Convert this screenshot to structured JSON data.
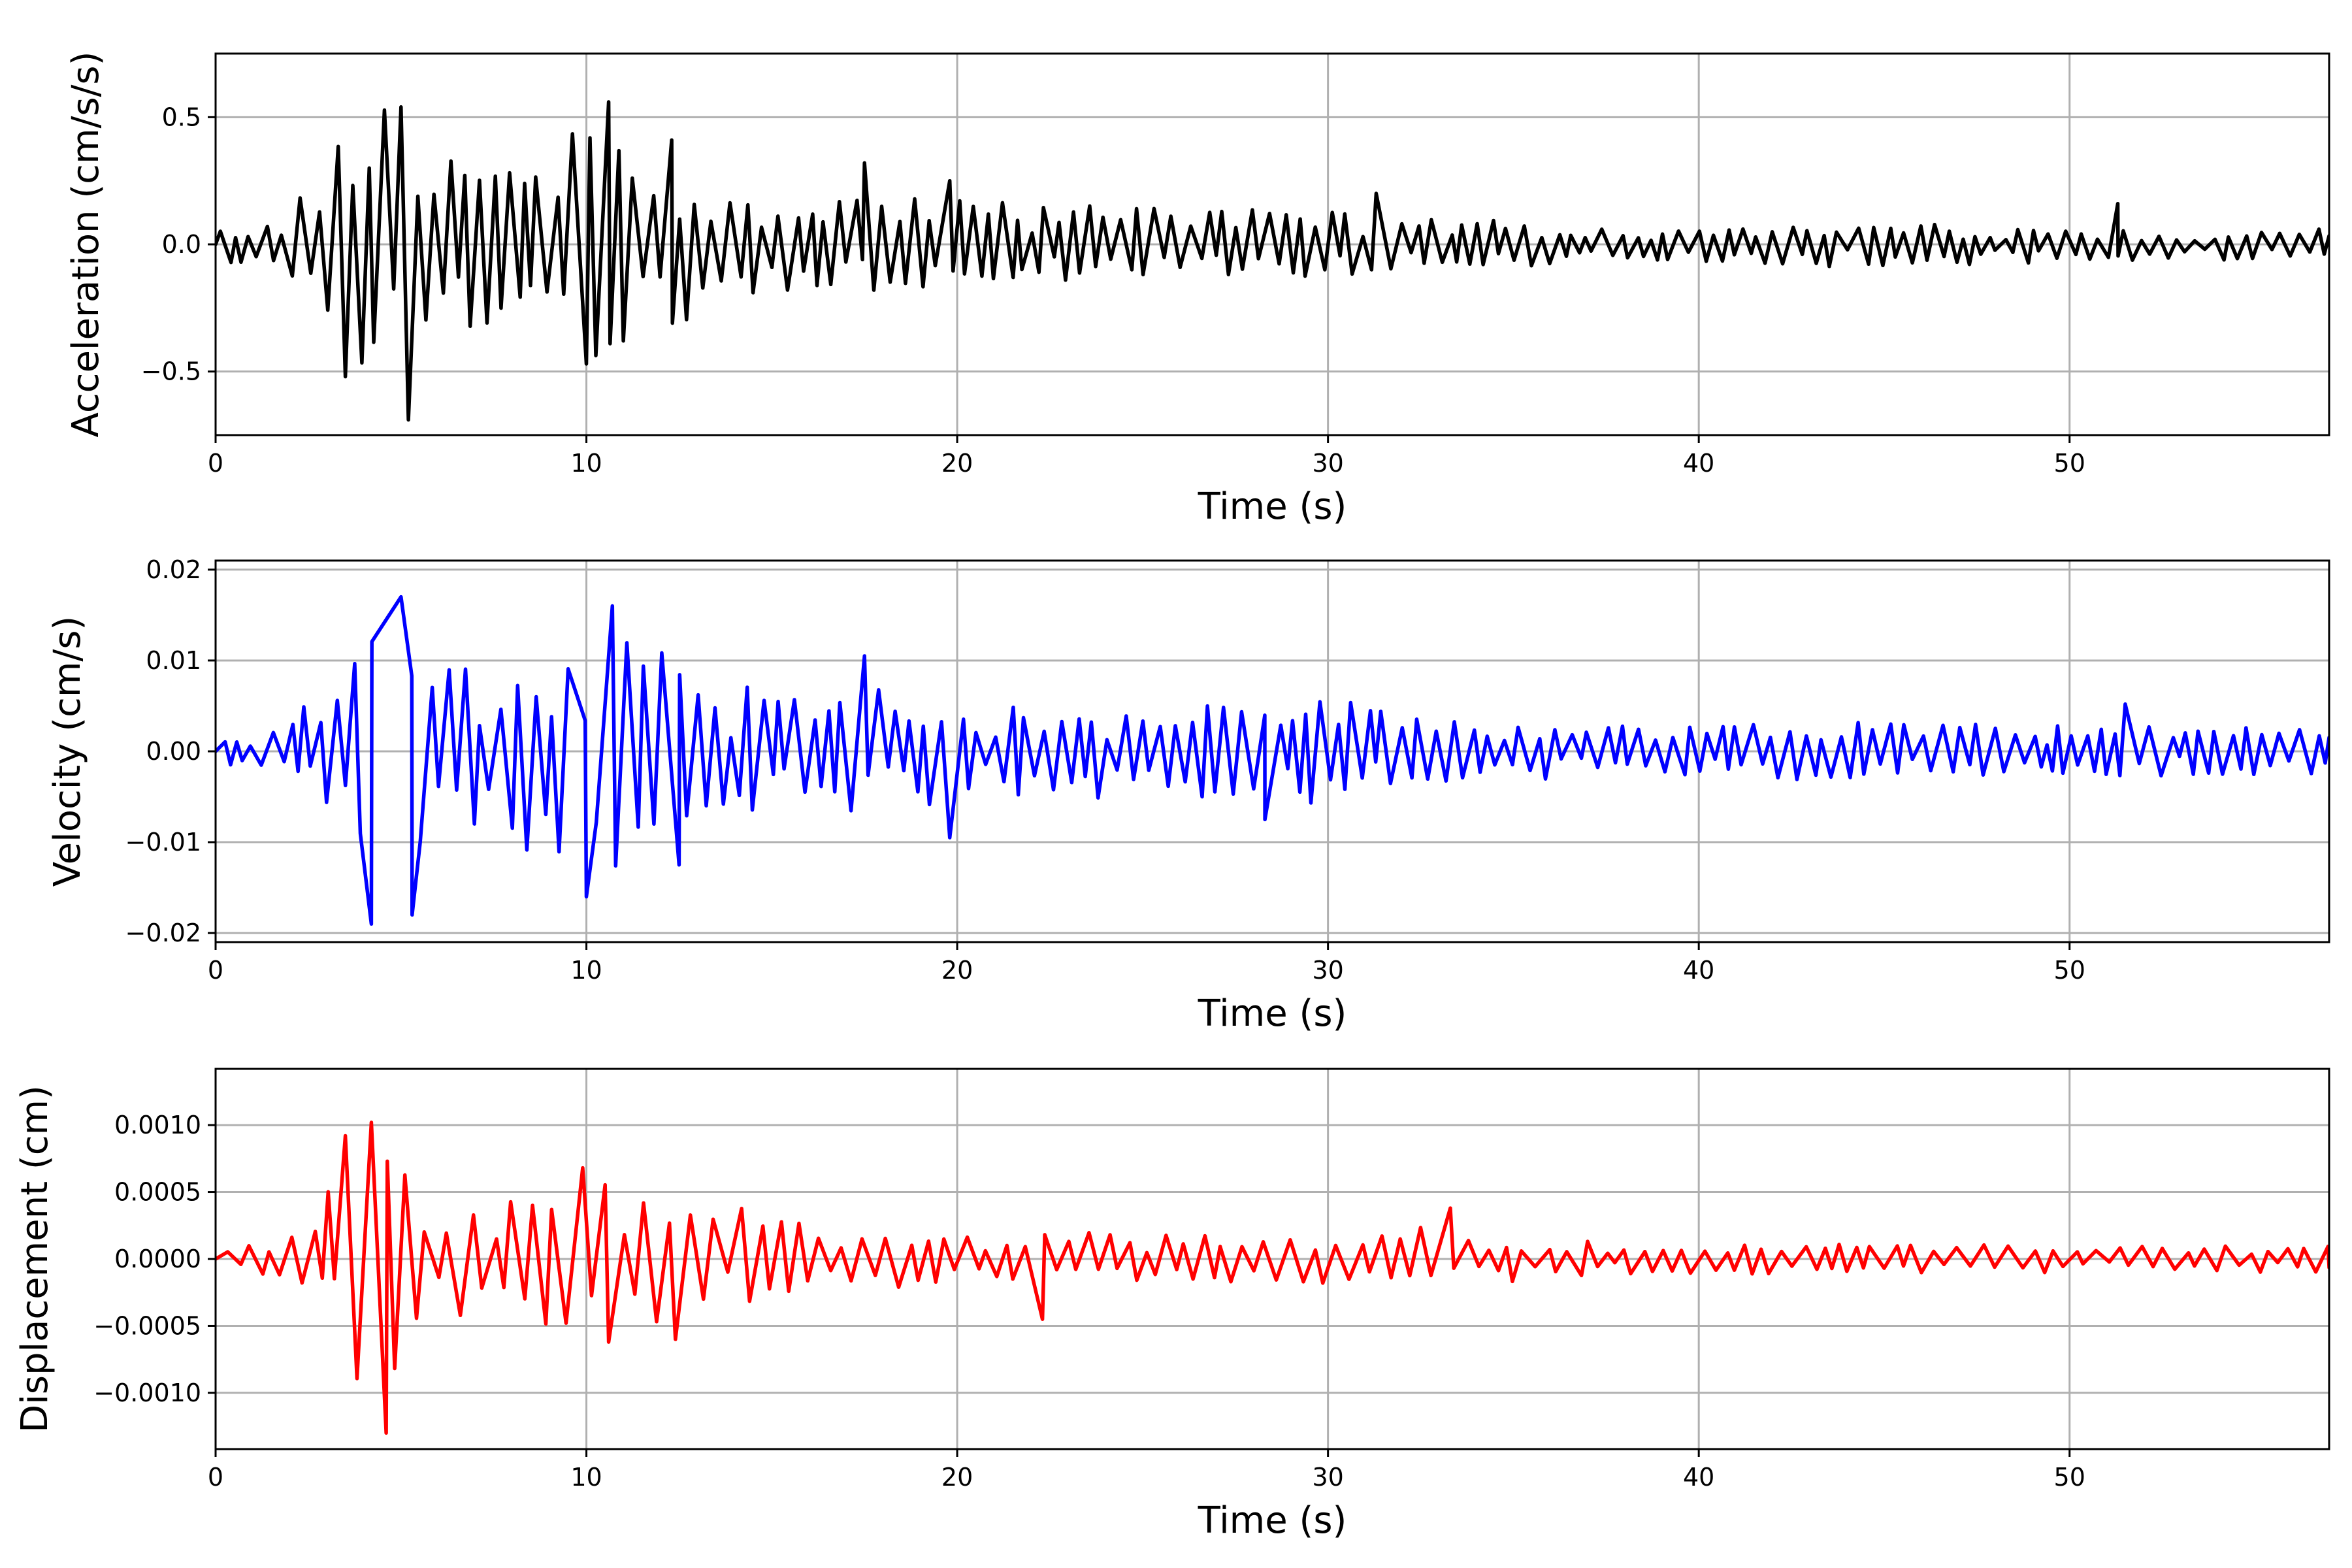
{
  "chart_data": [
    {
      "type": "line",
      "xlabel": "Time (s)",
      "ylabel": "Acceleration (cm/s/s)",
      "xlim": [
        0,
        57
      ],
      "ylim": [
        -0.75,
        0.75
      ],
      "xticks": [
        0,
        10,
        20,
        30,
        40,
        50
      ],
      "xtick_labels": [
        "0",
        "10",
        "20",
        "30",
        "40",
        "50"
      ],
      "yticks": [
        -0.5,
        0.0,
        0.5
      ],
      "ytick_labels": [
        "−0.5",
        "0.0",
        "0.5"
      ],
      "grid": true,
      "color": "#000000",
      "envelope": [
        [
          0,
          0.06
        ],
        [
          2,
          0.12
        ],
        [
          3,
          0.35
        ],
        [
          4,
          0.48
        ],
        [
          5,
          0.58
        ],
        [
          6,
          0.38
        ],
        [
          8,
          0.28
        ],
        [
          9,
          0.36
        ],
        [
          10,
          0.5
        ],
        [
          11,
          0.4
        ],
        [
          12,
          0.42
        ],
        [
          13,
          0.26
        ],
        [
          16,
          0.2
        ],
        [
          18,
          0.2
        ],
        [
          20,
          0.18
        ],
        [
          25,
          0.14
        ],
        [
          30,
          0.15
        ],
        [
          32,
          0.13
        ],
        [
          36,
          0.08
        ],
        [
          40,
          0.07
        ],
        [
          44,
          0.09
        ],
        [
          50,
          0.07
        ],
        [
          57,
          0.06
        ]
      ],
      "peaks": [
        [
          3.5,
          -0.52
        ],
        [
          5.0,
          0.54
        ],
        [
          5.2,
          -0.69
        ],
        [
          10.0,
          -0.47
        ],
        [
          10.6,
          0.56
        ],
        [
          12.3,
          0.41
        ],
        [
          17.5,
          0.32
        ],
        [
          19.8,
          0.25
        ],
        [
          31.3,
          0.2
        ],
        [
          51.3,
          0.16
        ]
      ]
    },
    {
      "type": "line",
      "xlabel": "Time (s)",
      "ylabel": "Velocity (cm/s)",
      "xlim": [
        0,
        57
      ],
      "ylim": [
        -0.021,
        0.021
      ],
      "xticks": [
        0,
        10,
        20,
        30,
        40,
        50
      ],
      "xtick_labels": [
        "0",
        "10",
        "20",
        "30",
        "40",
        "50"
      ],
      "yticks": [
        -0.02,
        -0.01,
        0.0,
        0.01,
        0.02
      ],
      "ytick_labels": [
        "−0.02",
        "−0.01",
        "0.00",
        "0.01",
        "0.02"
      ],
      "grid": true,
      "color": "#0000ff",
      "envelope": [
        [
          0,
          0.0015
        ],
        [
          2,
          0.0025
        ],
        [
          3,
          0.009
        ],
        [
          4,
          0.013
        ],
        [
          5,
          0.016
        ],
        [
          6,
          0.01
        ],
        [
          8,
          0.011
        ],
        [
          10,
          0.014
        ],
        [
          11,
          0.013
        ],
        [
          12,
          0.012
        ],
        [
          13,
          0.008
        ],
        [
          16,
          0.006
        ],
        [
          18,
          0.007
        ],
        [
          20,
          0.006
        ],
        [
          25,
          0.005
        ],
        [
          28,
          0.005
        ],
        [
          30,
          0.006
        ],
        [
          32,
          0.005
        ],
        [
          36,
          0.003
        ],
        [
          40,
          0.0028
        ],
        [
          44,
          0.0035
        ],
        [
          50,
          0.0028
        ],
        [
          57,
          0.0025
        ]
      ],
      "peaks": [
        [
          4.2,
          -0.019
        ],
        [
          5.0,
          0.017
        ],
        [
          5.3,
          -0.018
        ],
        [
          10.0,
          -0.016
        ],
        [
          10.7,
          0.016
        ],
        [
          12.5,
          -0.0125
        ],
        [
          17.5,
          0.0105
        ],
        [
          19.8,
          -0.0095
        ],
        [
          28.3,
          -0.0075
        ],
        [
          51.5,
          0.0052
        ]
      ]
    },
    {
      "type": "line",
      "xlabel": "Time (s)",
      "ylabel": "Displacement (cm)",
      "xlim": [
        0,
        57
      ],
      "ylim": [
        -0.00142,
        0.00142
      ],
      "xticks": [
        0,
        10,
        20,
        30,
        40,
        50
      ],
      "xtick_labels": [
        "0",
        "10",
        "20",
        "30",
        "40",
        "50"
      ],
      "yticks": [
        -0.001,
        -0.0005,
        0.0,
        0.0005,
        0.001
      ],
      "ytick_labels": [
        "−0.0010",
        "−0.0005",
        "0.0000",
        "0.0005",
        "0.0010"
      ],
      "grid": true,
      "color": "#ff0000",
      "envelope": [
        [
          0,
          8e-05
        ],
        [
          2.5,
          0.0002
        ],
        [
          3.5,
          0.0008
        ],
        [
          4.5,
          0.0011
        ],
        [
          5.5,
          0.0004
        ],
        [
          8,
          0.00045
        ],
        [
          10,
          0.0006
        ],
        [
          12,
          0.0005
        ],
        [
          14,
          0.0004
        ],
        [
          16,
          0.00025
        ],
        [
          20,
          0.0002
        ],
        [
          25,
          0.0002
        ],
        [
          30,
          0.0002
        ],
        [
          33,
          0.00025
        ],
        [
          36,
          0.00015
        ],
        [
          40,
          0.00012
        ],
        [
          44,
          0.00012
        ],
        [
          50,
          0.00011
        ],
        [
          57,
          0.0001
        ]
      ],
      "peaks": [
        [
          3.5,
          0.00092
        ],
        [
          4.2,
          0.00102
        ],
        [
          4.6,
          -0.0013
        ],
        [
          9.9,
          0.00068
        ],
        [
          10.6,
          -0.00062
        ],
        [
          12.4,
          -0.0006
        ],
        [
          22.3,
          -0.00045
        ],
        [
          33.3,
          0.00038
        ]
      ]
    }
  ]
}
